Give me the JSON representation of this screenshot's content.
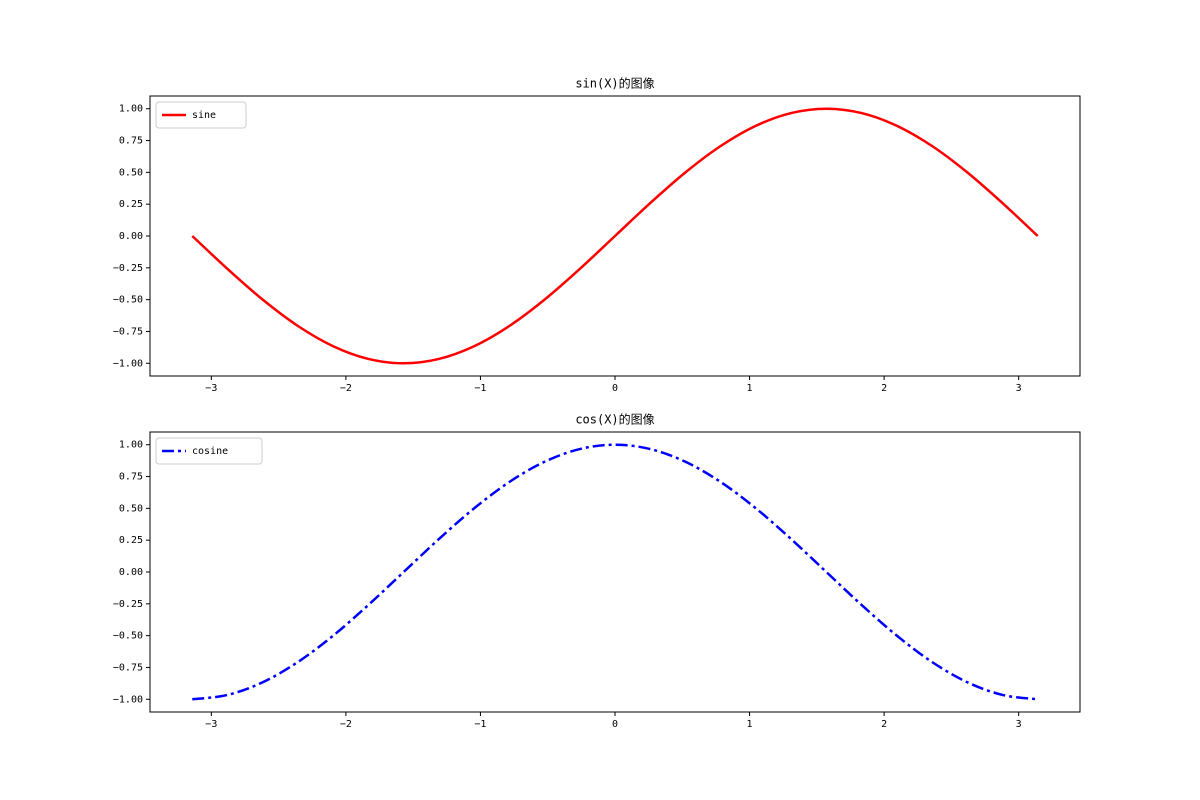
{
  "chart_data": [
    {
      "type": "line",
      "title": "sin(X)的图像",
      "x": [
        -3.1416,
        -2.8798,
        -2.618,
        -2.3562,
        -2.0944,
        -1.8326,
        -1.5708,
        -1.309,
        -1.0472,
        -0.7854,
        -0.5236,
        -0.2618,
        0,
        0.2618,
        0.5236,
        0.7854,
        1.0472,
        1.309,
        1.5708,
        1.8326,
        2.0944,
        2.3562,
        2.618,
        2.8798,
        3.1416
      ],
      "series": [
        {
          "name": "sine",
          "color": "#ff0000",
          "linestyle": "solid",
          "values": [
            0,
            -0.2588,
            -0.5,
            -0.7071,
            -0.866,
            -0.9659,
            -1,
            -0.9659,
            -0.866,
            -0.7071,
            -0.5,
            -0.2588,
            0,
            0.2588,
            0.5,
            0.7071,
            0.866,
            0.9659,
            1,
            0.9659,
            0.866,
            0.7071,
            0.5,
            0.2588,
            0
          ]
        }
      ],
      "xlim": [
        -3.4558,
        3.4558
      ],
      "ylim": [
        -1.1,
        1.1
      ],
      "xticks": [
        {
          "value": -3,
          "label": "−3"
        },
        {
          "value": -2,
          "label": "−2"
        },
        {
          "value": -1,
          "label": "−1"
        },
        0,
        1,
        2,
        3
      ],
      "yticks": [
        {
          "value": -1,
          "label": "−1.00"
        },
        {
          "value": -0.75,
          "label": "−0.75"
        },
        {
          "value": -0.5,
          "label": "−0.50"
        },
        {
          "value": -0.25,
          "label": "−0.25"
        },
        {
          "value": 0,
          "label": "0.00"
        },
        {
          "value": 0.25,
          "label": "0.25"
        },
        {
          "value": 0.5,
          "label": "0.50"
        },
        {
          "value": 0.75,
          "label": "0.75"
        },
        {
          "value": 1,
          "label": "1.00"
        }
      ],
      "legend": "upper left"
    },
    {
      "type": "line",
      "title": "cos(X)的图像",
      "x": [
        -3.1416,
        -2.8798,
        -2.618,
        -2.3562,
        -2.0944,
        -1.8326,
        -1.5708,
        -1.309,
        -1.0472,
        -0.7854,
        -0.5236,
        -0.2618,
        0,
        0.2618,
        0.5236,
        0.7854,
        1.0472,
        1.309,
        1.5708,
        1.8326,
        2.0944,
        2.3562,
        2.618,
        2.8798,
        3.1416
      ],
      "series": [
        {
          "name": "cosine",
          "color": "#0000ff",
          "linestyle": "dashdot",
          "values": [
            -1,
            -0.9659,
            -0.866,
            -0.7071,
            -0.5,
            -0.2588,
            0,
            0.2588,
            0.5,
            0.7071,
            0.866,
            0.9659,
            1,
            0.9659,
            0.866,
            0.7071,
            0.5,
            0.2588,
            0,
            -0.2588,
            -0.5,
            -0.7071,
            -0.866,
            -0.9659,
            -1
          ]
        }
      ],
      "xlim": [
        -3.4558,
        3.4558
      ],
      "ylim": [
        -1.1,
        1.1
      ],
      "xticks": [
        {
          "value": -3,
          "label": "−3"
        },
        {
          "value": -2,
          "label": "−2"
        },
        {
          "value": -1,
          "label": "−1"
        },
        0,
        1,
        2,
        3
      ],
      "yticks": [
        {
          "value": -1,
          "label": "−1.00"
        },
        {
          "value": -0.75,
          "label": "−0.75"
        },
        {
          "value": -0.5,
          "label": "−0.50"
        },
        {
          "value": -0.25,
          "label": "−0.25"
        },
        {
          "value": 0,
          "label": "0.00"
        },
        {
          "value": 0.25,
          "label": "0.25"
        },
        {
          "value": 0.5,
          "label": "0.50"
        },
        {
          "value": 0.75,
          "label": "0.75"
        },
        {
          "value": 1,
          "label": "1.00"
        }
      ],
      "legend": "upper left"
    }
  ]
}
